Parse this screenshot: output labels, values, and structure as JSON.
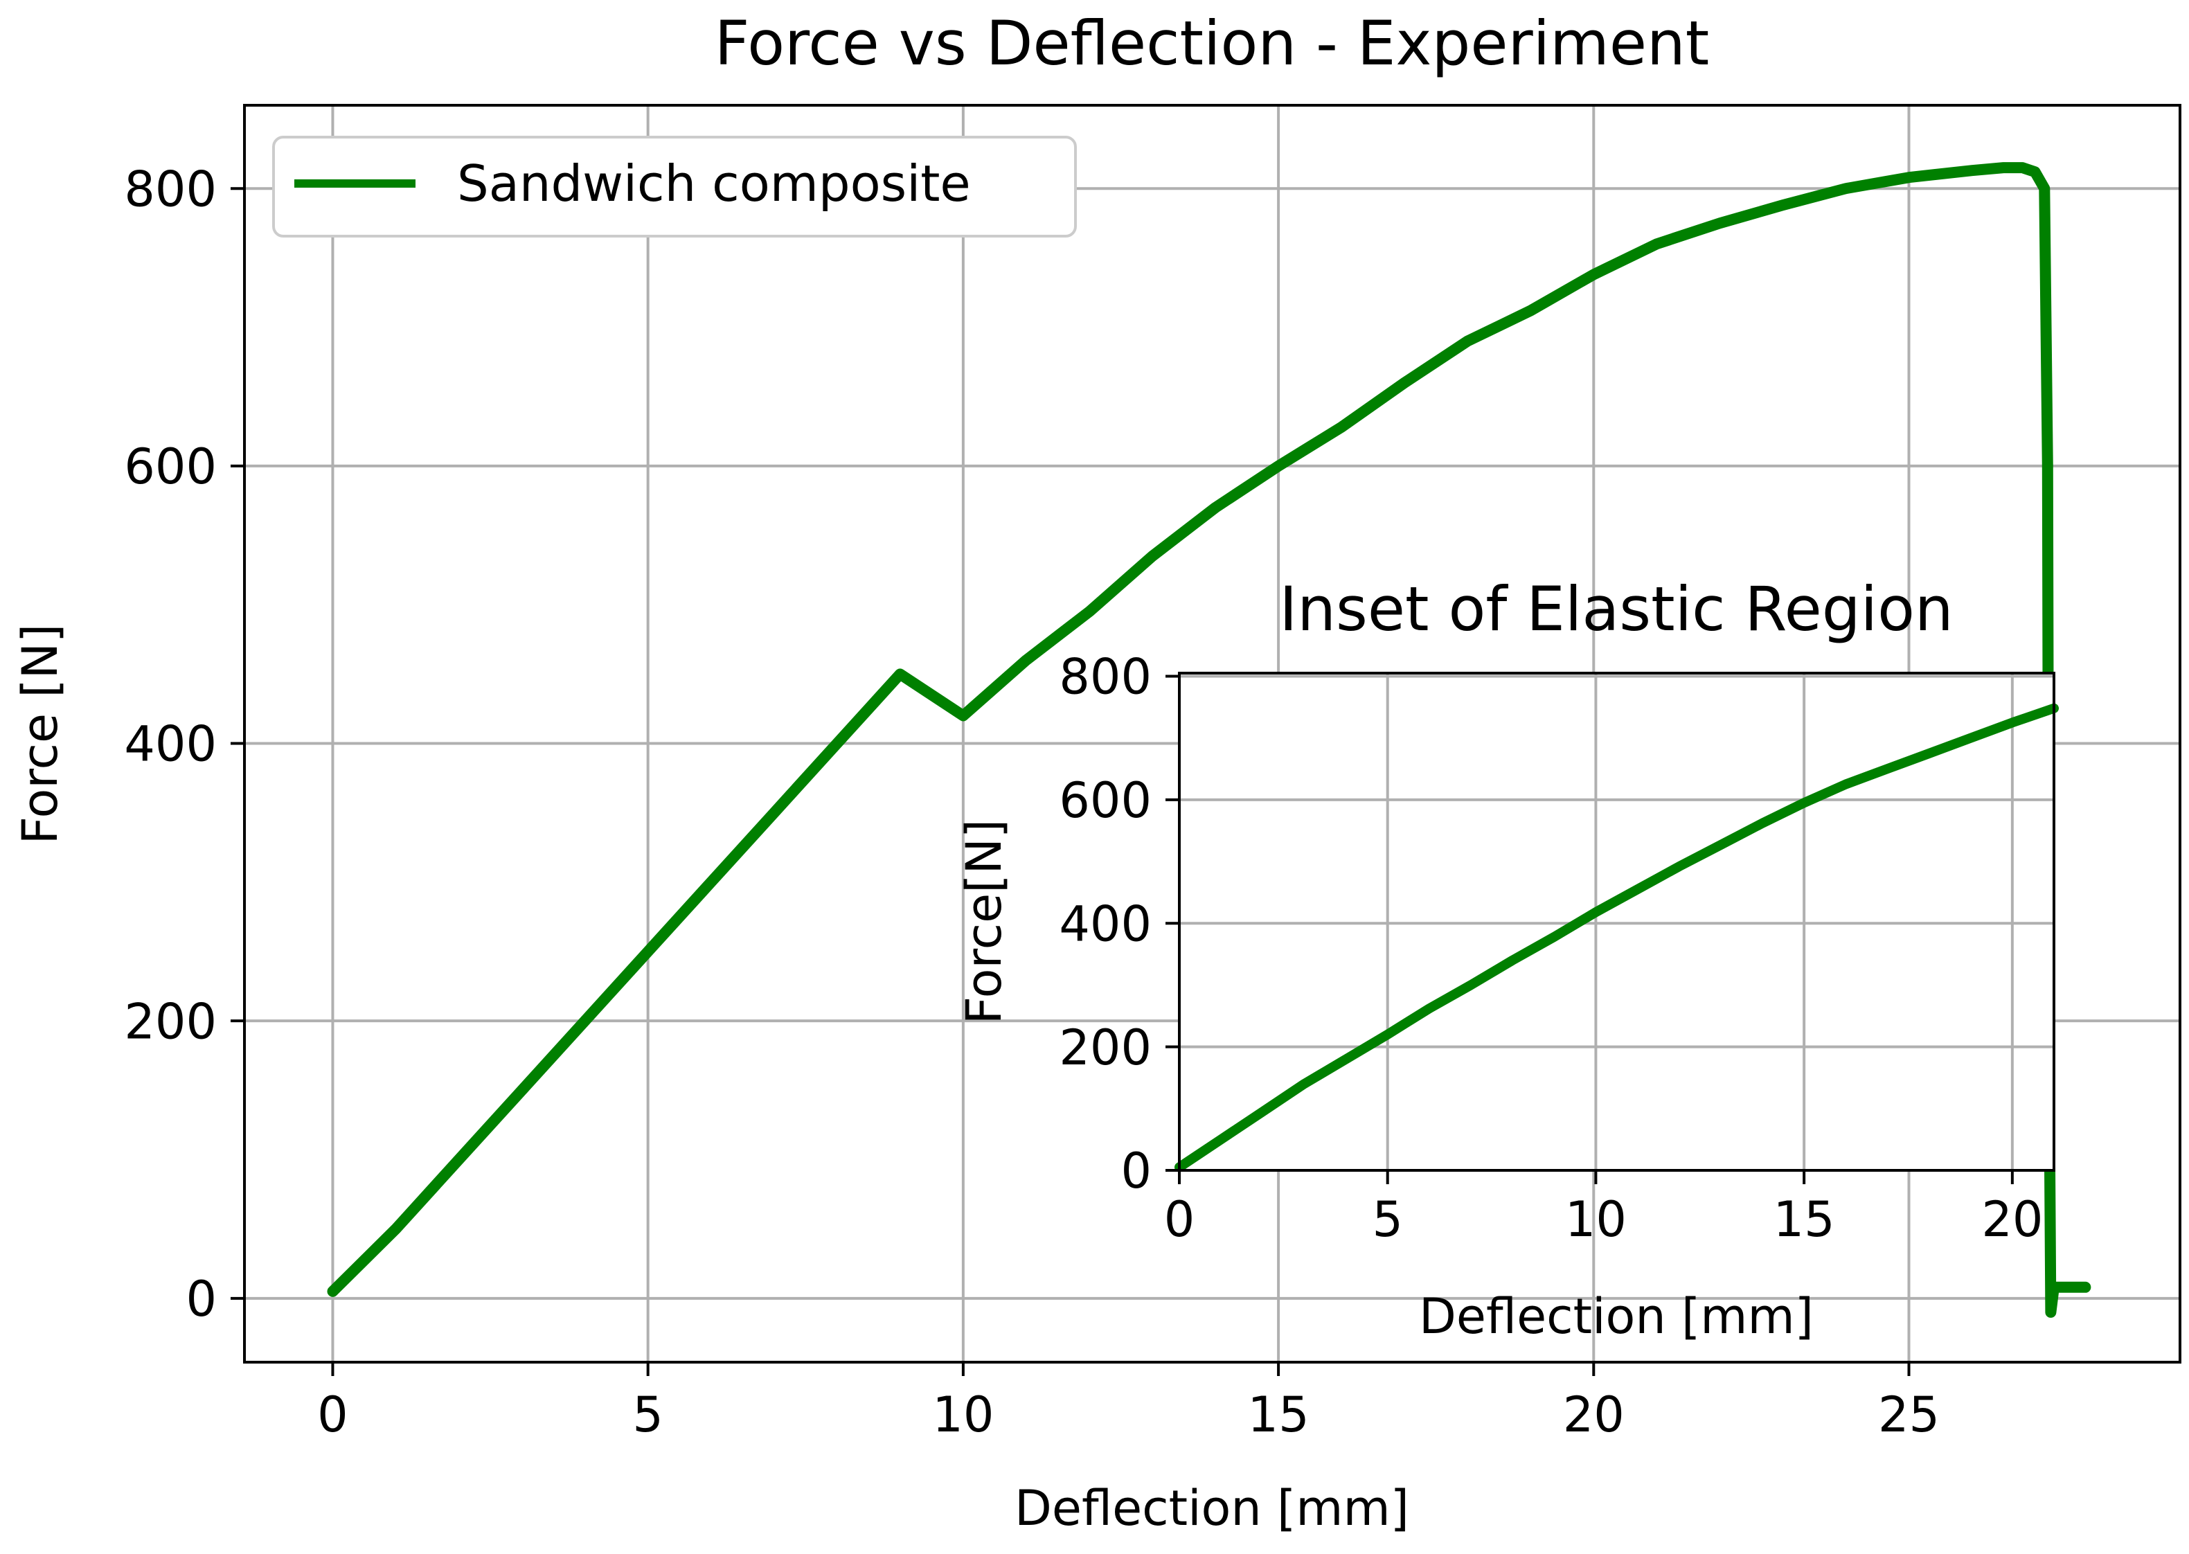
{
  "chart_data": [
    {
      "type": "line",
      "title": "Force vs Deflection - Experiment",
      "xlabel": "Deflection [mm]",
      "ylabel": "Force [N]",
      "xlim": [
        -1.4,
        29.3
      ],
      "ylim": [
        -46,
        860
      ],
      "grid": true,
      "legend_position": "upper-left",
      "xticks": [
        0,
        5,
        10,
        15,
        20,
        25
      ],
      "xtick_labels": [
        "0",
        "5",
        "10",
        "15",
        "20",
        "25"
      ],
      "yticks": [
        0,
        200,
        400,
        600,
        800
      ],
      "ytick_labels": [
        "0",
        "200",
        "400",
        "600",
        "800"
      ],
      "series": [
        {
          "name": "Sandwich composite",
          "color": "#008000",
          "x": [
            0,
            1,
            2,
            3,
            4,
            5,
            6,
            7,
            8,
            9,
            10,
            11,
            12,
            13,
            14,
            15,
            16,
            17,
            18,
            19,
            20,
            21,
            22,
            23,
            24,
            25,
            26,
            26.5,
            26.8,
            27.0,
            27.15,
            27.2,
            27.22,
            27.25,
            27.3,
            27.5,
            27.8
          ],
          "y": [
            5,
            50,
            100,
            150,
            200,
            250,
            300,
            350,
            400,
            450,
            420,
            460,
            495,
            535,
            570,
            600,
            628,
            660,
            690,
            712,
            738,
            760,
            775,
            788,
            800,
            808,
            813,
            815,
            815,
            812,
            800,
            600,
            200,
            -10,
            8,
            8,
            8
          ]
        }
      ]
    },
    {
      "type": "line",
      "title": "Inset of Elastic Region",
      "xlabel": "Deflection [mm]",
      "ylabel": "Force[N]",
      "xlim": [
        0,
        21
      ],
      "ylim": [
        0,
        805
      ],
      "grid": true,
      "xticks": [
        0,
        5,
        10,
        15,
        20
      ],
      "xtick_labels": [
        "0",
        "5",
        "10",
        "15",
        "20"
      ],
      "yticks": [
        0,
        200,
        400,
        600,
        800
      ],
      "ytick_labels": [
        "0",
        "200",
        "400",
        "600",
        "800"
      ],
      "series": [
        {
          "name": "Sandwich composite",
          "color": "#008000",
          "x": [
            0,
            1,
            2,
            3,
            4,
            5,
            6,
            7,
            8,
            9,
            10,
            11,
            12,
            13,
            14,
            15,
            16,
            17,
            18,
            19,
            20,
            21
          ],
          "y": [
            5,
            50,
            95,
            140,
            180,
            220,
            262,
            300,
            340,
            378,
            418,
            455,
            492,
            527,
            562,
            595,
            625,
            650,
            675,
            700,
            725,
            748
          ]
        }
      ]
    }
  ]
}
